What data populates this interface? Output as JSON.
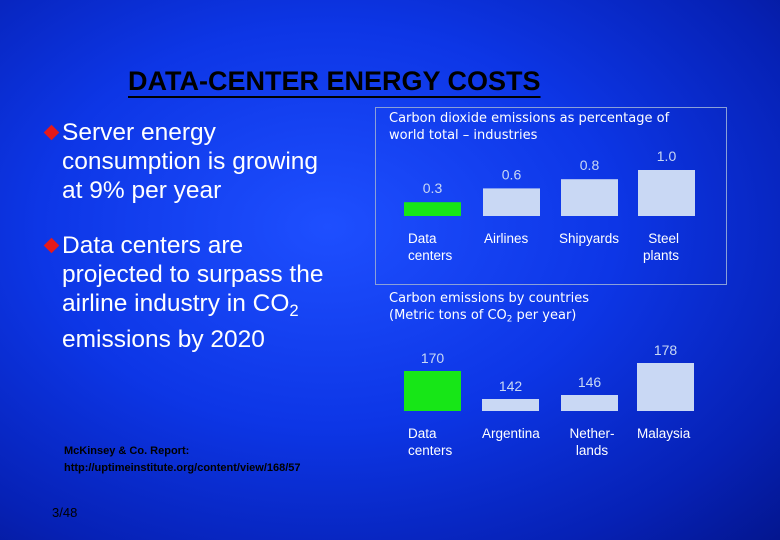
{
  "slide": {
    "title": "DATA-CENTER ENERGY COSTS",
    "bullet1": {
      "line1": "Server energy",
      "line2": "consumption is growing",
      "line3": "at 9% per year"
    },
    "bullet2": {
      "line1": "Data centers are",
      "line2": "projected to surpass the",
      "line3_pre": "airline industry in CO",
      "line3_sub": "2",
      "line4": "emissions by 2020"
    },
    "citation": {
      "line1": "McKinsey & Co. Report:",
      "line2": "http://uptimeinstitute.org/content/view/168/57"
    },
    "page_number": "3/48"
  },
  "colors": {
    "highlight_bar": "#17e617",
    "other_bar": "#c9d8f4",
    "bullet_marker": "#e61919",
    "value_label": "#c9d8f4"
  },
  "chart_data": [
    {
      "type": "bar",
      "title_line1": "Carbon dioxide emissions as percentage of",
      "title_line2": "world total – industries",
      "categories": [
        "Data centers",
        "Airlines",
        "Shipyards",
        "Steel plants"
      ],
      "category_labels": [
        [
          "Data",
          "centers"
        ],
        [
          "Airlines"
        ],
        [
          "Shipyards"
        ],
        [
          "Steel",
          "plants"
        ]
      ],
      "values": [
        0.3,
        0.6,
        0.8,
        1.0
      ],
      "value_labels": [
        "0.3",
        "0.6",
        "0.8",
        "1.0"
      ],
      "highlight_index": 0,
      "ylim": [
        0,
        1.0
      ],
      "unit": "% of world total"
    },
    {
      "type": "bar",
      "title_line1": "Carbon emissions by countries",
      "title_line2_pre": "(Metric tons of CO",
      "title_line2_sub": "2",
      "title_line2_post": " per year)",
      "categories": [
        "Data centers",
        "Argentina",
        "Netherlands",
        "Malaysia"
      ],
      "category_labels": [
        [
          "Data",
          "centers"
        ],
        [
          "Argentina"
        ],
        [
          "Nether-",
          "lands"
        ],
        [
          "Malaysia"
        ]
      ],
      "values": [
        170,
        142,
        146,
        178
      ],
      "value_labels": [
        "170",
        "142",
        "146",
        "178"
      ],
      "highlight_index": 0,
      "unit": "metric tons of CO2 per year"
    }
  ]
}
